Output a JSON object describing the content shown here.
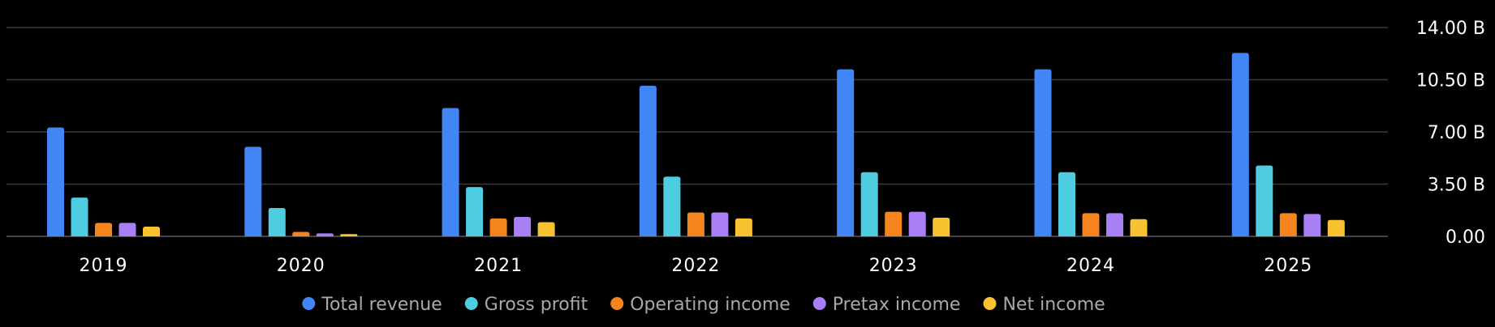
{
  "chart_data": {
    "type": "bar",
    "categories": [
      "2019",
      "2020",
      "2021",
      "2022",
      "2023",
      "2024",
      "2025"
    ],
    "y_tick_labels": [
      "0.00",
      "3.50 B",
      "7.00 B",
      "10.50 B",
      "14.00 B"
    ],
    "y_tick_values": [
      0,
      3.5,
      7,
      10.5,
      14
    ],
    "ylim": [
      0,
      14
    ],
    "yunit": "B",
    "y_axis_side": "right",
    "grid": true,
    "legend_position": "bottom-center",
    "series": [
      {
        "name": "Total revenue",
        "color": "#4285f4",
        "values": [
          7.3,
          6.0,
          8.6,
          10.1,
          11.2,
          11.2,
          12.3
        ]
      },
      {
        "name": "Gross profit",
        "color": "#4fcde0",
        "values": [
          2.6,
          1.9,
          3.3,
          4.0,
          4.3,
          4.3,
          4.75
        ]
      },
      {
        "name": "Operating income",
        "color": "#f5841f",
        "values": [
          0.9,
          0.3,
          1.2,
          1.6,
          1.65,
          1.55,
          1.55
        ]
      },
      {
        "name": "Pretax income",
        "color": "#a97ff5",
        "values": [
          0.9,
          0.2,
          1.3,
          1.6,
          1.65,
          1.55,
          1.5
        ]
      },
      {
        "name": "Net income",
        "color": "#f9c231",
        "values": [
          0.65,
          0.15,
          0.95,
          1.2,
          1.25,
          1.15,
          1.1
        ]
      }
    ]
  }
}
